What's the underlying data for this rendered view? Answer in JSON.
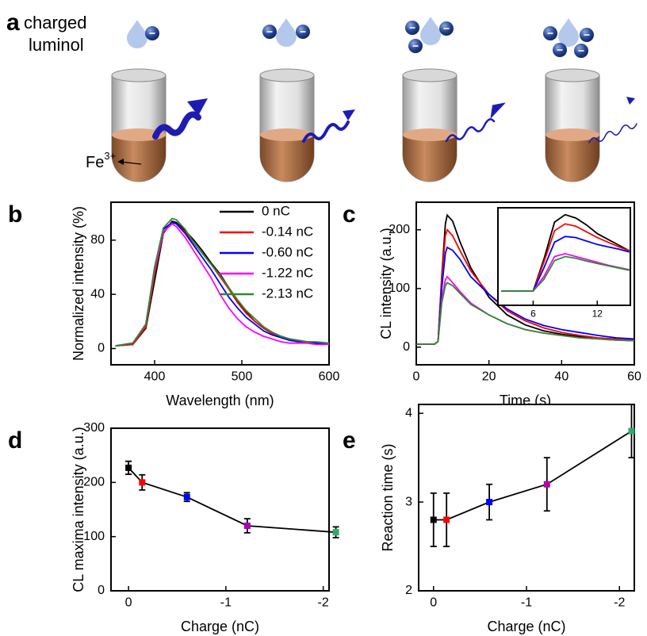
{
  "panel_a": {
    "label": "a",
    "caption": [
      "charged",
      "luminol"
    ],
    "ion": "Fe",
    "ion_charge": "3+"
  },
  "chart_data": [
    {
      "panel_label": "b",
      "type": "line",
      "x_label": "Wavelength (nm)",
      "y_label": "Normalized intensity (%)",
      "x": [
        355,
        375,
        390,
        400,
        410,
        420,
        425,
        435,
        445,
        455,
        465,
        475,
        485,
        495,
        505,
        515,
        525,
        535,
        545,
        555,
        565,
        575,
        585,
        600
      ],
      "series": [
        {
          "name": "0 nC",
          "color": "#000000",
          "values": [
            2,
            3,
            15,
            50,
            85,
            94,
            93,
            87,
            80,
            72,
            63,
            55,
            45,
            35,
            27,
            20,
            15,
            11,
            9,
            7,
            6,
            5,
            4,
            4
          ]
        },
        {
          "name": "-0.14 nC",
          "color": "#ff0000",
          "values": [
            2,
            3,
            16,
            55,
            86,
            93,
            92,
            86,
            78,
            70,
            62,
            53,
            44,
            34,
            26,
            20,
            15,
            11,
            8,
            7,
            6,
            5,
            4,
            4
          ]
        },
        {
          "name": "-0.60 nC",
          "color": "#0000ff",
          "values": [
            2,
            4,
            18,
            60,
            88,
            93,
            92,
            85,
            76,
            67,
            58,
            48,
            38,
            30,
            23,
            18,
            13,
            10,
            8,
            6,
            5,
            5,
            4,
            4
          ]
        },
        {
          "name": "-1.22 nC",
          "color": "#ff00ff",
          "values": [
            2,
            4,
            18,
            58,
            86,
            92,
            90,
            82,
            72,
            62,
            52,
            40,
            30,
            22,
            16,
            12,
            9,
            7,
            5,
            4,
            4,
            4,
            3,
            3
          ]
        },
        {
          "name": "-2.13 nC",
          "color": "#2e8b2e",
          "values": [
            2,
            4,
            18,
            60,
            89,
            96,
            95,
            88,
            78,
            70,
            62,
            54,
            45,
            36,
            28,
            22,
            16,
            12,
            9,
            7,
            6,
            5,
            5,
            4
          ]
        }
      ],
      "xlim": [
        350,
        600
      ],
      "xticks": [
        400,
        500,
        600
      ],
      "ylim": [
        -12,
        108
      ],
      "yticks": [
        0,
        40,
        80
      ],
      "legend": "upper right"
    },
    {
      "panel_label": "c",
      "type": "line",
      "x_label": "Time (s)",
      "y_label": "CL intensity (a.u.)",
      "x": [
        0,
        5,
        6,
        7,
        8,
        8.5,
        10,
        12,
        15,
        20,
        25,
        30,
        35,
        40,
        45,
        50,
        55,
        60
      ],
      "series": [
        {
          "color": "#000000",
          "values": [
            5,
            5,
            10,
            120,
            210,
            225,
            215,
            180,
            135,
            85,
            55,
            38,
            28,
            22,
            18,
            15,
            13,
            12
          ]
        },
        {
          "color": "#ff0000",
          "values": [
            5,
            5,
            10,
            115,
            190,
            200,
            190,
            165,
            130,
            90,
            62,
            45,
            33,
            25,
            20,
            16,
            14,
            12
          ]
        },
        {
          "color": "#0000ff",
          "values": [
            5,
            5,
            10,
            100,
            160,
            170,
            165,
            150,
            120,
            90,
            65,
            48,
            37,
            30,
            25,
            20,
            16,
            14
          ]
        },
        {
          "color": "#ff00ff",
          "values": [
            5,
            5,
            10,
            80,
            115,
            120,
            110,
            95,
            75,
            55,
            40,
            30,
            24,
            20,
            16,
            14,
            12,
            11
          ]
        },
        {
          "color": "#2e8b2e",
          "values": [
            5,
            5,
            10,
            75,
            105,
            110,
            105,
            92,
            73,
            55,
            40,
            30,
            24,
            20,
            16,
            14,
            12,
            11
          ]
        }
      ],
      "xlim": [
        0,
        60
      ],
      "xticks": [
        0,
        20,
        40,
        60
      ],
      "ylim": [
        -30,
        247
      ],
      "yticks": [
        0,
        100,
        200
      ],
      "inset": {
        "type": "line",
        "x": [
          3,
          4,
          5,
          6,
          7,
          8,
          9,
          10,
          11,
          12,
          13,
          14,
          15
        ],
        "series": [
          {
            "color": "#000000",
            "values": [
              95,
              95,
              95,
              95,
              150,
              215,
              228,
              222,
              210,
              195,
              185,
              175,
              165
            ]
          },
          {
            "color": "#ff0000",
            "values": [
              95,
              95,
              95,
              95,
              145,
              200,
              212,
              208,
              198,
              188,
              180,
              172,
              165
            ]
          },
          {
            "color": "#0000ff",
            "values": [
              95,
              95,
              95,
              95,
              135,
              180,
              190,
              188,
              182,
              176,
              172,
              168,
              163
            ]
          },
          {
            "color": "#ff00ff",
            "values": [
              95,
              95,
              95,
              95,
              120,
              155,
              160,
              155,
              150,
              145,
              140,
              136,
              132
            ]
          },
          {
            "color": "#2e8b2e",
            "values": [
              95,
              95,
              95,
              95,
              115,
              148,
              155,
              152,
              147,
              143,
              139,
              135,
              131
            ]
          }
        ],
        "xlim": [
          2.7,
          15.1
        ],
        "xticks": [
          6,
          12
        ],
        "ylim": [
          70,
          240
        ]
      }
    },
    {
      "panel_label": "d",
      "type": "scatter",
      "x_label": "Charge (nC)",
      "y_label": "CL maxima intensity (a.u.)",
      "x": [
        0,
        -0.14,
        -0.6,
        -1.22,
        -2.13
      ],
      "values": [
        227,
        200,
        173,
        120,
        108
      ],
      "errors": [
        12,
        14,
        8,
        13,
        10
      ],
      "colors": [
        "#000000",
        "#ff0000",
        "#0000ff",
        "#b000b0",
        "#2eaa6e"
      ],
      "line_color": "#000000",
      "xlim": [
        0.18,
        -2.06
      ],
      "xticks": [
        0,
        -1,
        -2
      ],
      "ylim": [
        0,
        300
      ],
      "yticks": [
        0,
        100,
        200,
        300
      ]
    },
    {
      "panel_label": "e",
      "type": "scatter",
      "x_label": "Charge (nC)",
      "y_label": "Reaction time (s)",
      "x": [
        0,
        -0.14,
        -0.6,
        -1.22,
        -2.13
      ],
      "values": [
        2.8,
        2.8,
        3.0,
        3.2,
        3.8
      ],
      "errors": [
        0.3,
        0.3,
        0.2,
        0.3,
        0.3
      ],
      "colors": [
        "#000000",
        "#ff0000",
        "#0000ff",
        "#b000b0",
        "#2eaa6e"
      ],
      "line_color": "#000000",
      "xlim": [
        0.16,
        -2.16
      ],
      "xticks": [
        0,
        -1,
        -2
      ],
      "ylim": [
        2,
        4.1
      ],
      "yticks": [
        2,
        3,
        4
      ]
    }
  ]
}
